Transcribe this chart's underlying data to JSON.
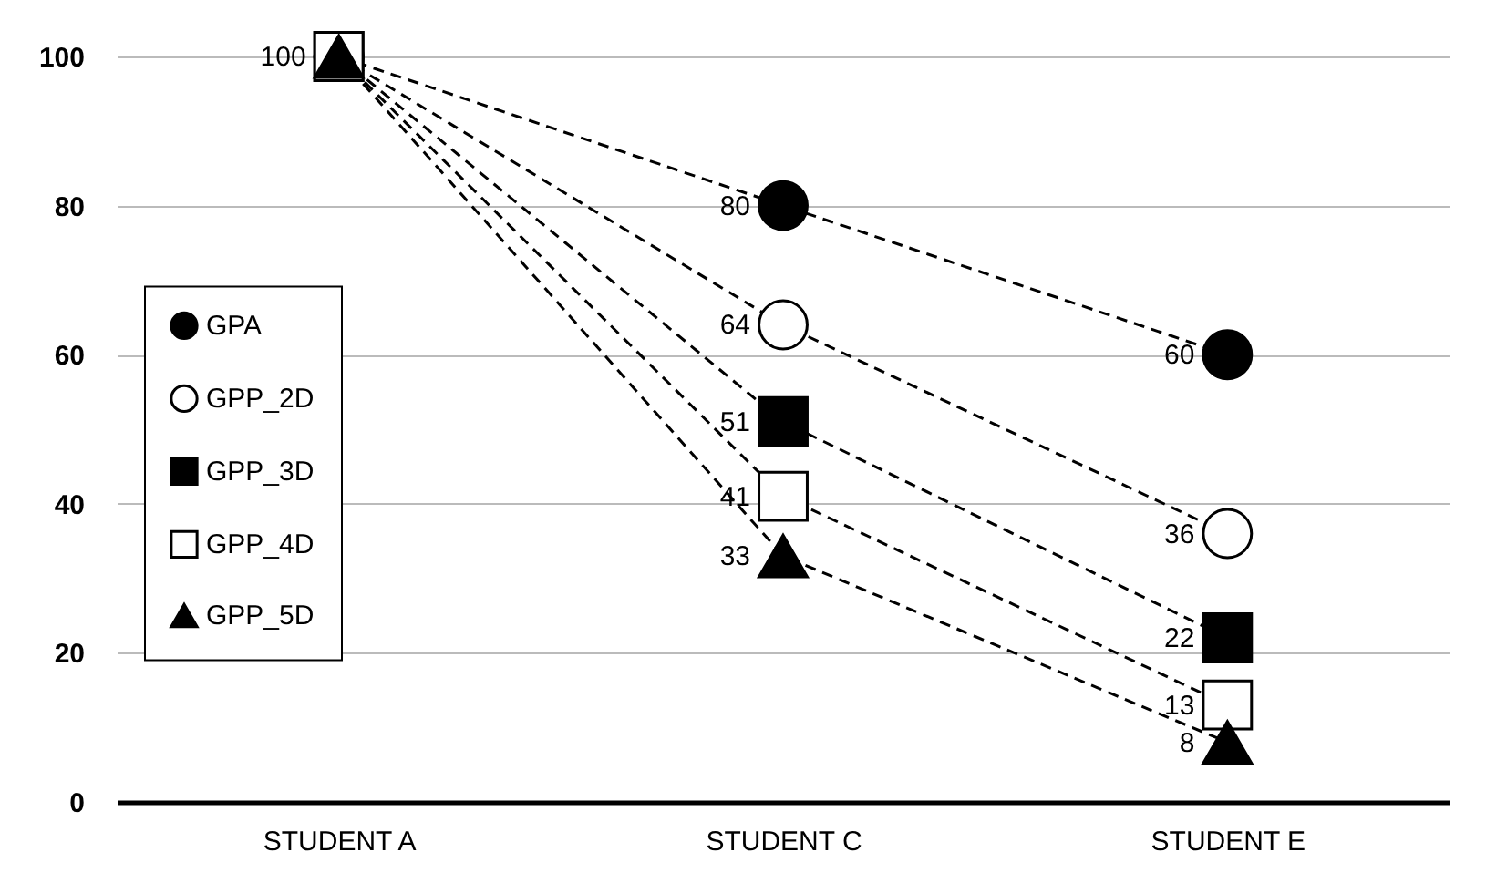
{
  "chart_data": {
    "type": "line",
    "categories": [
      "STUDENT A",
      "STUDENT C",
      "STUDENT E"
    ],
    "series": [
      {
        "name": "GPA",
        "color": "#000000",
        "marker": "circle",
        "values": [
          100,
          80,
          60
        ],
        "value_labels": [
          "100",
          "80",
          "60"
        ]
      },
      {
        "name": "GPP_2D",
        "color": "#000000",
        "marker": "circle-open",
        "values": [
          100,
          64,
          36
        ],
        "value_labels": [
          null,
          "64",
          "36"
        ]
      },
      {
        "name": "GPP_3D",
        "color": "#000000",
        "marker": "square",
        "values": [
          100,
          51,
          22
        ],
        "value_labels": [
          null,
          "51",
          "22"
        ]
      },
      {
        "name": "GPP_4D",
        "color": "#000000",
        "marker": "square-open",
        "values": [
          100,
          41,
          13
        ],
        "value_labels": [
          null,
          "41",
          "13"
        ]
      },
      {
        "name": "GPP_5D",
        "color": "#000000",
        "marker": "triangle",
        "values": [
          100,
          33,
          8
        ],
        "value_labels": [
          null,
          "33",
          "8"
        ]
      }
    ],
    "ylim": [
      0,
      100
    ],
    "yticks": [
      0,
      20,
      40,
      60,
      80,
      100
    ],
    "grid": "y",
    "legend": "left",
    "line_style": "dashed"
  }
}
